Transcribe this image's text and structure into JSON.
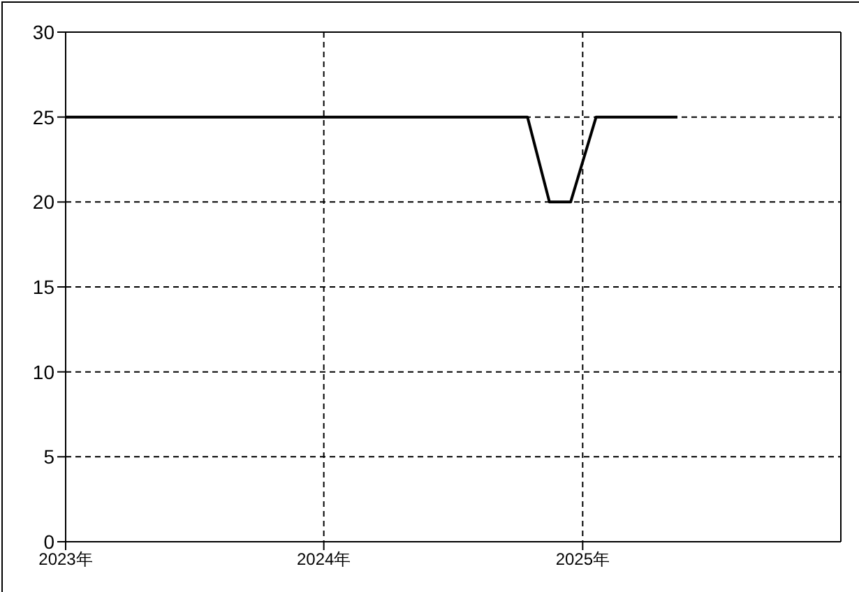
{
  "chart_data": {
    "type": "line",
    "x": [
      "2023-01-01",
      "2024-10-15",
      "2024-11-15",
      "2024-12-15",
      "2025-01-20",
      "2025-05-15"
    ],
    "series": [
      {
        "color": "#000000",
        "values": [
          25,
          25,
          20,
          20,
          25,
          25
        ]
      }
    ],
    "xlim": [
      "2023-01-01",
      "2026-01-01"
    ],
    "xticks": [
      {
        "value": "2023-01-01",
        "label": "2023年"
      },
      {
        "value": "2024-01-01",
        "label": "2024年"
      },
      {
        "value": "2025-01-01",
        "label": "2025年"
      }
    ],
    "ylim": [
      0,
      30
    ],
    "yticks": [
      0,
      5,
      10,
      15,
      20,
      25,
      30
    ],
    "grid": true,
    "line_style": "solid",
    "marker": "none",
    "legend": false
  }
}
